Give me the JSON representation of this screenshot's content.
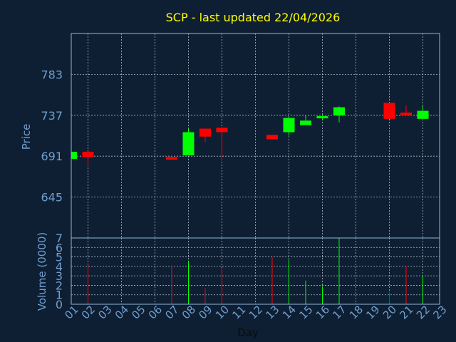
{
  "chart_data": {
    "type": "candlestick",
    "title": "SCP - last updated 22/04/2026",
    "xlabel": "Day",
    "price_panel": {
      "ylabel": "Price",
      "yticks": [
        645,
        691,
        737,
        783
      ],
      "ylim": [
        599,
        829
      ]
    },
    "volume_panel": {
      "ylabel": "Volume (0000)",
      "yticks": [
        0,
        1,
        2,
        3,
        4,
        5,
        6,
        7
      ],
      "ylim": [
        0,
        7
      ]
    },
    "x_ticks": [
      "01",
      "02",
      "03",
      "04",
      "05",
      "06",
      "07",
      "08",
      "09",
      "10",
      "11",
      "12",
      "13",
      "14",
      "15",
      "16",
      "17",
      "18",
      "19",
      "20",
      "21",
      "22",
      "23"
    ],
    "series": [
      {
        "day": "01",
        "open": 688,
        "high": 696,
        "low": 688,
        "close": 696,
        "volume": 0
      },
      {
        "day": "02",
        "open": 696,
        "high": 696,
        "low": 680,
        "close": 690,
        "volume": 4.2
      },
      {
        "day": "07",
        "open": 690,
        "high": 690,
        "low": 687,
        "close": 687,
        "volume": 4.1
      },
      {
        "day": "08",
        "open": 692,
        "high": 722,
        "low": 692,
        "close": 718,
        "volume": 4.6
      },
      {
        "day": "09",
        "open": 722,
        "high": 722,
        "low": 707,
        "close": 713,
        "volume": 1.7
      },
      {
        "day": "10",
        "open": 723,
        "high": 723,
        "low": 686,
        "close": 718,
        "volume": 3.8
      },
      {
        "day": "13",
        "open": 715,
        "high": 715,
        "low": 710,
        "close": 710,
        "volume": 5.0
      },
      {
        "day": "14",
        "open": 718,
        "high": 735,
        "low": 714,
        "close": 734,
        "volume": 4.7
      },
      {
        "day": "15",
        "open": 726,
        "high": 737,
        "low": 726,
        "close": 731,
        "volume": 2.5
      },
      {
        "day": "16",
        "open": 734,
        "high": 737,
        "low": 732,
        "close": 736,
        "volume": 1.9
      },
      {
        "day": "17",
        "open": 737,
        "high": 747,
        "low": 729,
        "close": 746,
        "volume": 7.0
      },
      {
        "day": "20",
        "open": 751,
        "high": 751,
        "low": 733,
        "close": 733,
        "volume": 1.3
      },
      {
        "day": "21",
        "open": 740,
        "high": 748,
        "low": 737,
        "close": 737,
        "volume": 4.0
      },
      {
        "day": "22",
        "open": 733,
        "high": 749,
        "low": 733,
        "close": 742,
        "volume": 3.0
      }
    ],
    "grid": true,
    "colors": {
      "background": "#0f1f33",
      "up": "#00ff00",
      "down": "#ff0000",
      "title": "#ffff00",
      "axis_text": "#6f9fd0",
      "frame": "#8fb4d6",
      "grid": "#c8d4e0"
    }
  }
}
